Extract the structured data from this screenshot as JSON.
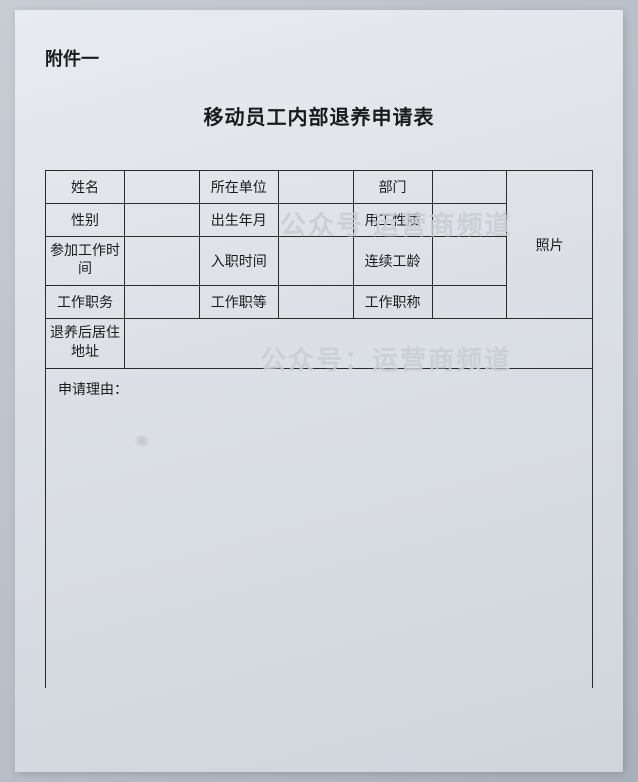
{
  "attachment_label": "附件一",
  "form_title": "移动员工内部退养申请表",
  "table": {
    "row1": {
      "label1": "姓名",
      "value1": "",
      "label2": "所在单位",
      "value2": "",
      "label3": "部门",
      "value3": ""
    },
    "row2": {
      "label1": "性别",
      "value1": "",
      "label2": "出生年月",
      "value2": "",
      "label3": "用工性质",
      "value3": ""
    },
    "row3": {
      "label1": "参加工作时间",
      "value1": "",
      "label2": "入职时间",
      "value2": "",
      "label3": "连续工龄",
      "value3": ""
    },
    "row4": {
      "label1": "工作职务",
      "value1": "",
      "label2": "工作职等",
      "value2": "",
      "label3": "工作职称",
      "value3": ""
    },
    "row5": {
      "label1": "退养后居住地址",
      "value1": ""
    },
    "photo_label": "照片",
    "reason_label": "申请理由："
  },
  "watermark": {
    "text1": "公众号    运营商频道",
    "text2": "公众号：运营商频道"
  },
  "colors": {
    "text": "#1a1a1a",
    "border": "#2a2a2a",
    "paper_bg": "#dde1e7",
    "watermark": "rgba(200,205,212,0.85)"
  },
  "fonts": {
    "title_size": 20,
    "label_size": 18,
    "cell_size": 14,
    "watermark_size": 26
  }
}
